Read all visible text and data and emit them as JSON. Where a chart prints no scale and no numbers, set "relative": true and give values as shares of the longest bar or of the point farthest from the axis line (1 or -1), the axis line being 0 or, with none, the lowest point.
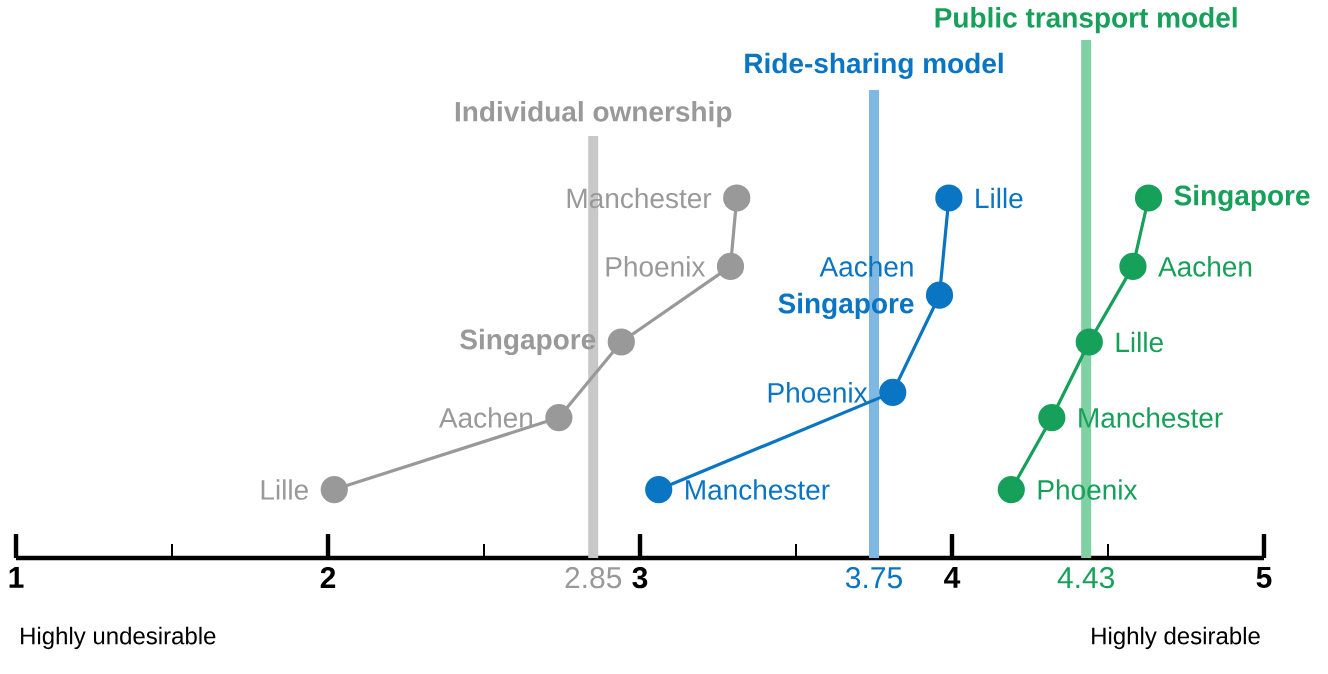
{
  "chart_data": {
    "type": "line",
    "relative": true,
    "marker": "circle",
    "line_style": "solid",
    "xlim": [
      1,
      5
    ],
    "xticks": [
      1,
      {
        "value": 1.5,
        "label": null
      },
      2,
      {
        "value": 2.5,
        "label": null
      },
      {
        "value": 2.85,
        "label": "2.85"
      },
      3,
      {
        "value": 3.5,
        "label": null
      },
      {
        "value": 3.75,
        "label": "3.75"
      },
      4,
      {
        "value": 4.43,
        "label": "4.43"
      },
      {
        "value": 4.5,
        "label": null
      },
      5
    ],
    "series": [
      {
        "color": "#999999",
        "x": [
          2.02,
          2.74,
          2.94,
          3.29,
          3.31
        ],
        "values": [
          0.19,
          0.39,
          0.6,
          0.81,
          1
        ]
      },
      {
        "color": "#0a75c2",
        "x": [
          3.06,
          3.81,
          3.96,
          3.99
        ],
        "values": [
          0.19,
          0.46,
          0.73,
          1
        ]
      },
      {
        "color": "#16a05a",
        "x": [
          4.19,
          4.32,
          4.44,
          4.58,
          4.63
        ],
        "values": [
          0.19,
          0.39,
          0.6,
          0.81,
          1
        ]
      }
    ],
    "ref_lines": [
      {
        "axis": "x",
        "value": 2.85,
        "label": "Individual ownership",
        "color": "#c8c8c8"
      },
      {
        "axis": "x",
        "value": 3.75,
        "label": "Ride-sharing model",
        "color": "#7fb8e0"
      },
      {
        "axis": "x",
        "value": 4.43,
        "label": "Public transport model",
        "color": "#7fd1a3"
      }
    ],
    "annotations": [
      {
        "text": "Lille",
        "x": 2.02,
        "y": 0.19
      },
      {
        "text": "Aachen",
        "x": 2.74,
        "y": 0.39
      },
      {
        "text": "Singapore",
        "x": 2.94,
        "y": 0.6
      },
      {
        "text": "Phoenix",
        "x": 3.29,
        "y": 0.81
      },
      {
        "text": "Manchester",
        "x": 3.31,
        "y": 1
      },
      {
        "text": "Manchester",
        "x": 3.06,
        "y": 0.19
      },
      {
        "text": "Phoenix",
        "x": 3.81,
        "y": 0.46
      },
      {
        "text": "Singapore",
        "x": 3.96,
        "y": 0.73
      },
      {
        "text": "Aachen",
        "x": 3.96,
        "y": 0.73
      },
      {
        "text": "Lille",
        "x": 3.99,
        "y": 1
      },
      {
        "text": "Phoenix",
        "x": 4.19,
        "y": 0.19
      },
      {
        "text": "Manchester",
        "x": 4.32,
        "y": 0.39
      },
      {
        "text": "Lille",
        "x": 4.44,
        "y": 0.6
      },
      {
        "text": "Aachen",
        "x": 4.58,
        "y": 0.81
      },
      {
        "text": "Singapore",
        "x": 4.63,
        "y": 1
      },
      "Highly undesirable",
      "Highly desirable"
    ]
  }
}
